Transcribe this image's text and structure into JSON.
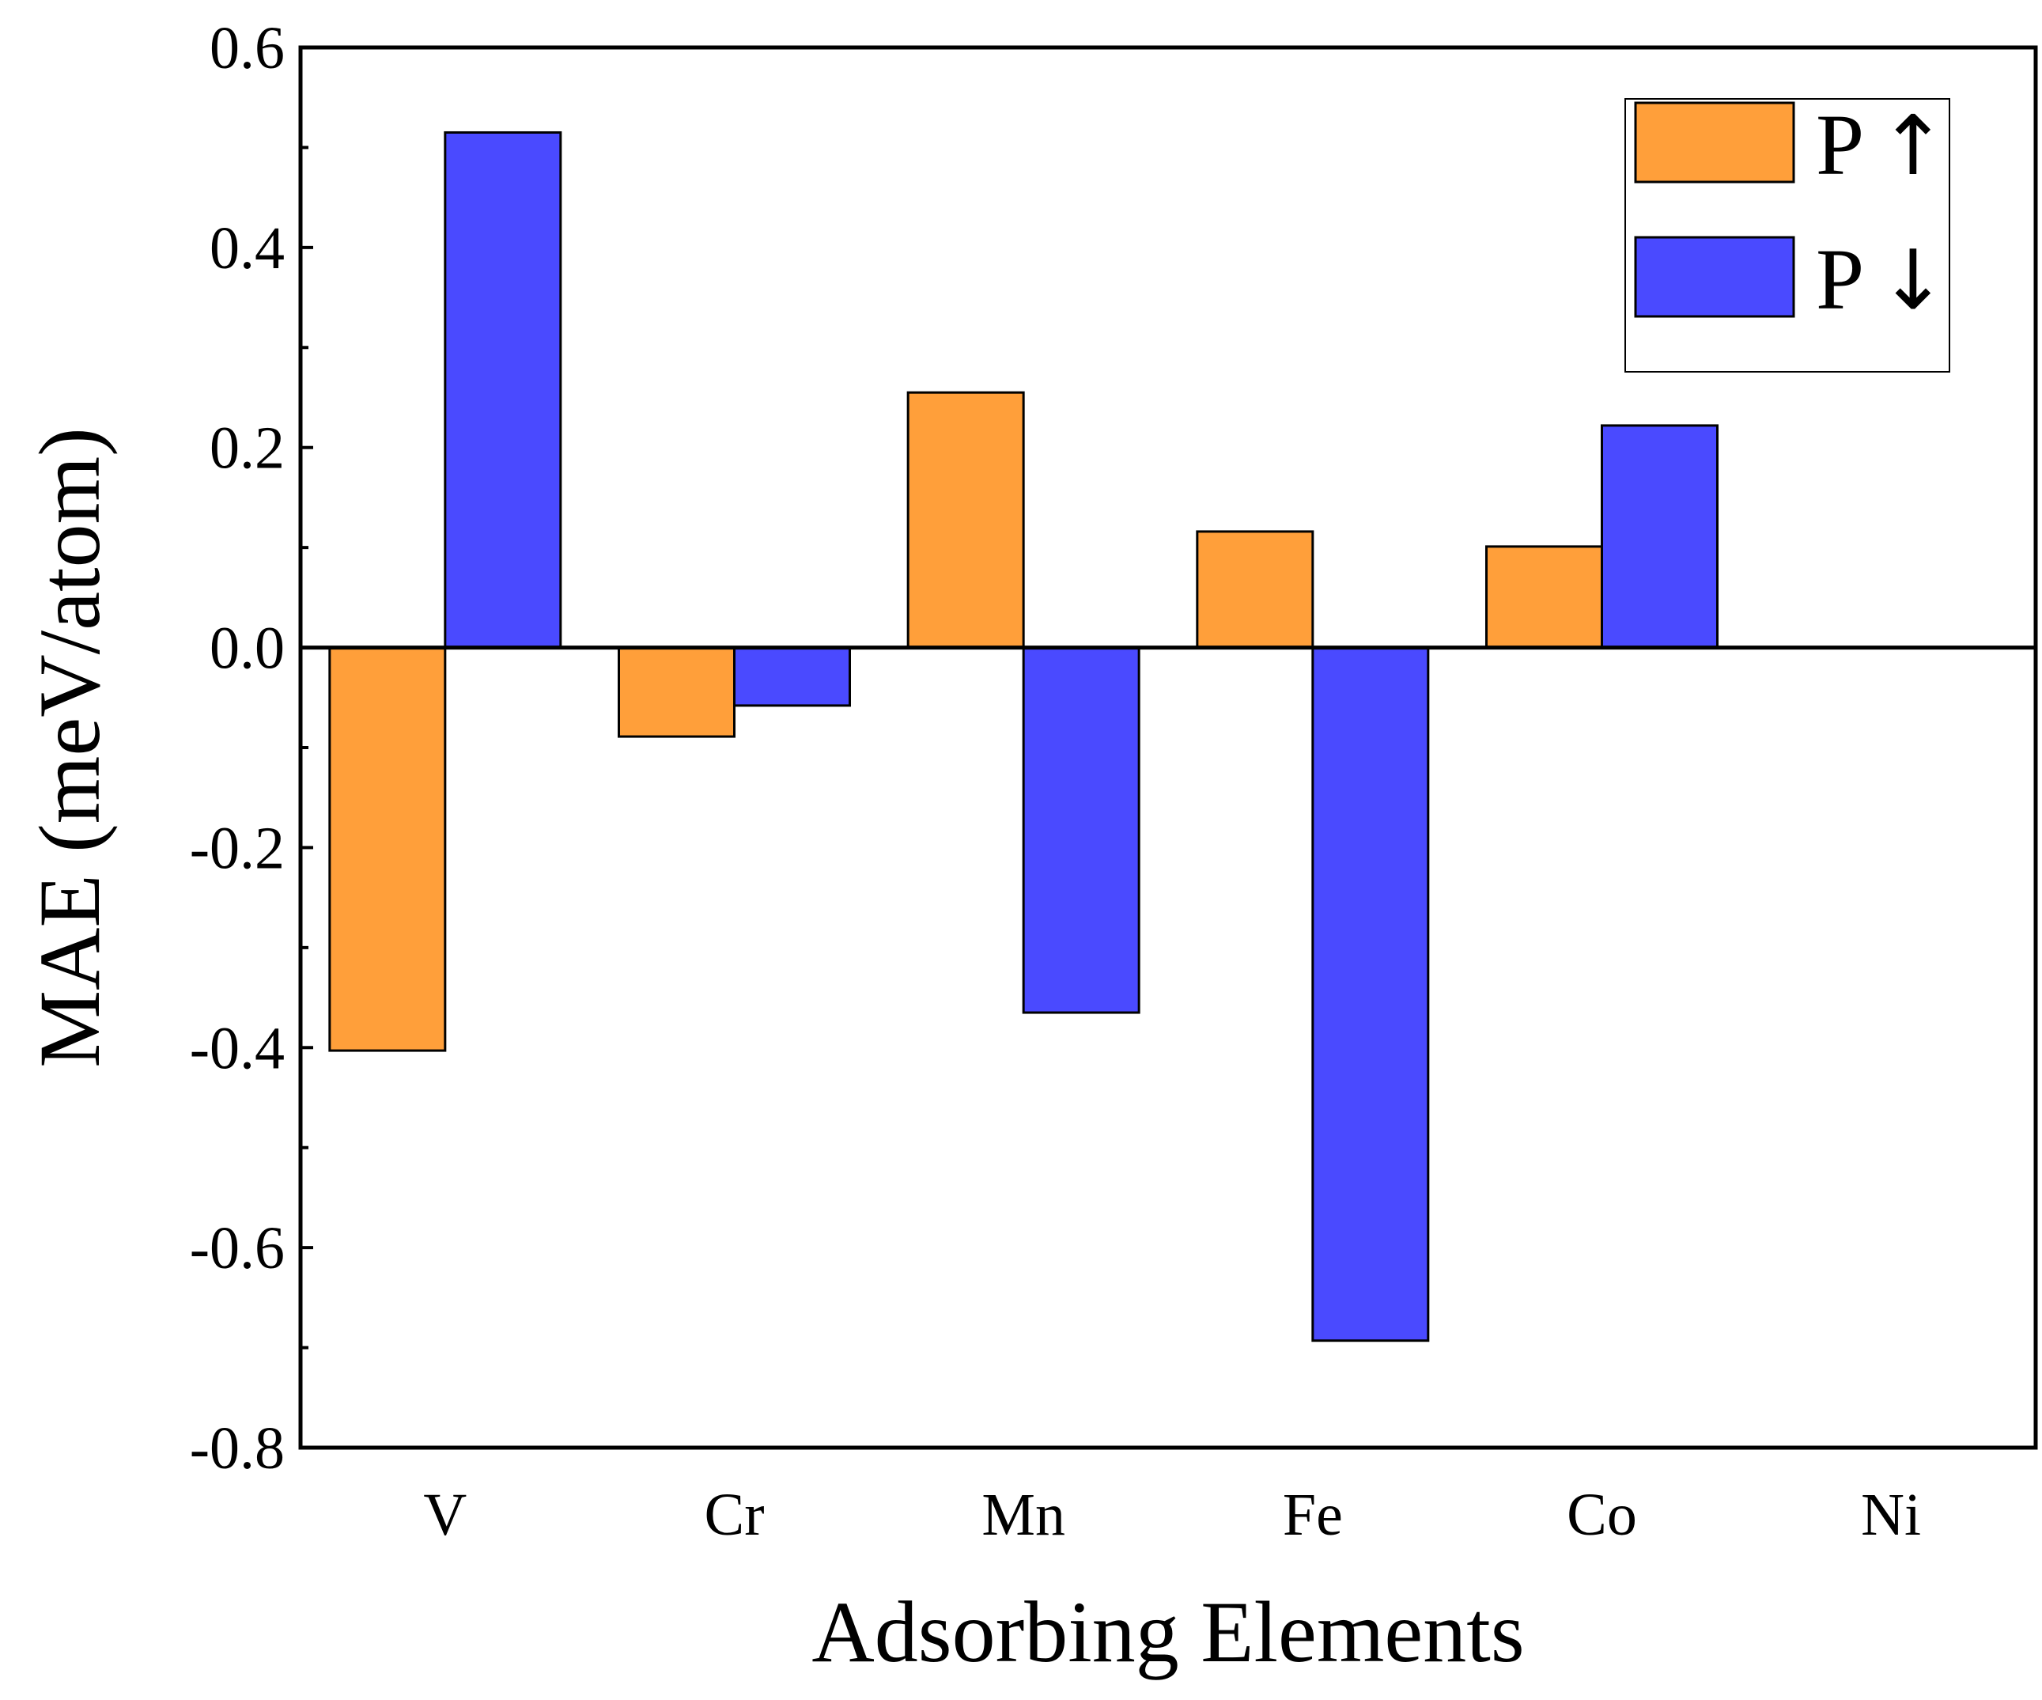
{
  "chart_data": {
    "type": "bar",
    "title": "",
    "xlabel": "Adsorbing Elements",
    "ylabel": "MAE (meV/atom)",
    "categories": [
      "V",
      "Cr",
      "Mn",
      "Fe",
      "Co",
      "Ni"
    ],
    "series": [
      {
        "name": "P↑",
        "symbol": "P",
        "arrow": "↑",
        "color": "#FF9F3A",
        "values": [
          -0.403,
          -0.089,
          0.255,
          0.116,
          0.101,
          0
        ]
      },
      {
        "name": "P↓",
        "symbol": "P",
        "arrow": "↓",
        "color": "#4A4AFF",
        "values": [
          0.515,
          -0.058,
          -0.365,
          -0.693,
          0.222,
          0
        ]
      }
    ],
    "ylim": [
      -0.8,
      0.6
    ],
    "yticks": [
      0.6,
      0.4,
      0.2,
      0.0,
      -0.2,
      -0.4,
      -0.6,
      -0.8
    ],
    "ytick_labels": [
      "0.6",
      "0.4",
      "0.2",
      "0.0",
      "-0.2",
      "-0.4",
      "-0.6",
      "-0.8"
    ],
    "grid": false,
    "zero_line": true,
    "legend_position": "top-right"
  }
}
